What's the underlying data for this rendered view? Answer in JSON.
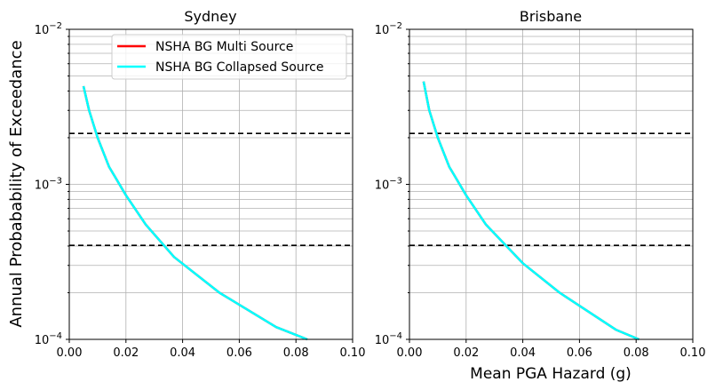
{
  "figure": {
    "ylabel": "Annual Probabability of Exceedance",
    "xlabel": "Mean PGA Hazard (g)"
  },
  "legend": {
    "placement": "top-right",
    "entries": [
      {
        "label": "NSHA BG Multi Source",
        "color": "#ff0000"
      },
      {
        "label": "NSHA BG Collapsed Source",
        "color": "#00ffff"
      }
    ]
  },
  "chart_data": [
    {
      "type": "line",
      "title": "Sydney",
      "xlabel": "",
      "ylabel": "Annual Probabability of Exceedance",
      "xlim": [
        0.0,
        0.1
      ],
      "ylim": [
        0.0001,
        0.01
      ],
      "yscale": "log",
      "grid": true,
      "xticks": [
        "0.00",
        "0.02",
        "0.04",
        "0.06",
        "0.08",
        "0.10"
      ],
      "yticks": [
        {
          "mantissa": "10",
          "exp": "−4",
          "value": 0.0001
        },
        {
          "mantissa": "10",
          "exp": "−3",
          "value": 0.001
        },
        {
          "mantissa": "10",
          "exp": "−2",
          "value": 0.01
        }
      ],
      "hlines": [
        0.00213,
        0.000404
      ],
      "hline_style": {
        "color": "#000000",
        "dash": "6,4"
      },
      "series": [
        {
          "name": "NSHA BG Multi Source",
          "color": "#ff0000",
          "x": [
            0.005,
            0.007,
            0.01,
            0.014,
            0.02,
            0.027,
            0.037,
            0.053,
            0.073,
            0.084
          ],
          "y": [
            0.0043,
            0.003,
            0.002,
            0.0013,
            0.00085,
            0.00055,
            0.00034,
            0.0002,
            0.00012,
            0.0001
          ]
        },
        {
          "name": "NSHA BG Collapsed Source",
          "color": "#00ffff",
          "x": [
            0.005,
            0.007,
            0.01,
            0.014,
            0.02,
            0.027,
            0.037,
            0.053,
            0.073,
            0.084
          ],
          "y": [
            0.0043,
            0.003,
            0.002,
            0.0013,
            0.00085,
            0.00055,
            0.00034,
            0.0002,
            0.00012,
            0.0001
          ]
        }
      ]
    },
    {
      "type": "line",
      "title": "Brisbane",
      "xlabel": "Mean PGA Hazard (g)",
      "ylabel": "",
      "xlim": [
        0.0,
        0.1
      ],
      "ylim": [
        0.0001,
        0.01
      ],
      "yscale": "log",
      "grid": true,
      "xticks": [
        "0.00",
        "0.02",
        "0.04",
        "0.06",
        "0.08",
        "0.10"
      ],
      "yticks": [
        {
          "mantissa": "10",
          "exp": "−4",
          "value": 0.0001
        },
        {
          "mantissa": "10",
          "exp": "−3",
          "value": 0.001
        },
        {
          "mantissa": "10",
          "exp": "−2",
          "value": 0.01
        }
      ],
      "hlines": [
        0.00213,
        0.000404
      ],
      "hline_style": {
        "color": "#000000",
        "dash": "6,4"
      },
      "series": [
        {
          "name": "NSHA BG Multi Source",
          "color": "#ff0000",
          "x": [
            0.005,
            0.007,
            0.01,
            0.014,
            0.02,
            0.027,
            0.04,
            0.053,
            0.073,
            0.081
          ],
          "y": [
            0.0046,
            0.003,
            0.002,
            0.0013,
            0.00085,
            0.00055,
            0.00031,
            0.0002,
            0.000115,
            0.0001
          ]
        },
        {
          "name": "NSHA BG Collapsed Source",
          "color": "#00ffff",
          "x": [
            0.005,
            0.007,
            0.01,
            0.014,
            0.02,
            0.027,
            0.04,
            0.053,
            0.073,
            0.081
          ],
          "y": [
            0.0046,
            0.003,
            0.002,
            0.0013,
            0.00085,
            0.00055,
            0.00031,
            0.0002,
            0.000115,
            0.0001
          ]
        }
      ]
    }
  ]
}
